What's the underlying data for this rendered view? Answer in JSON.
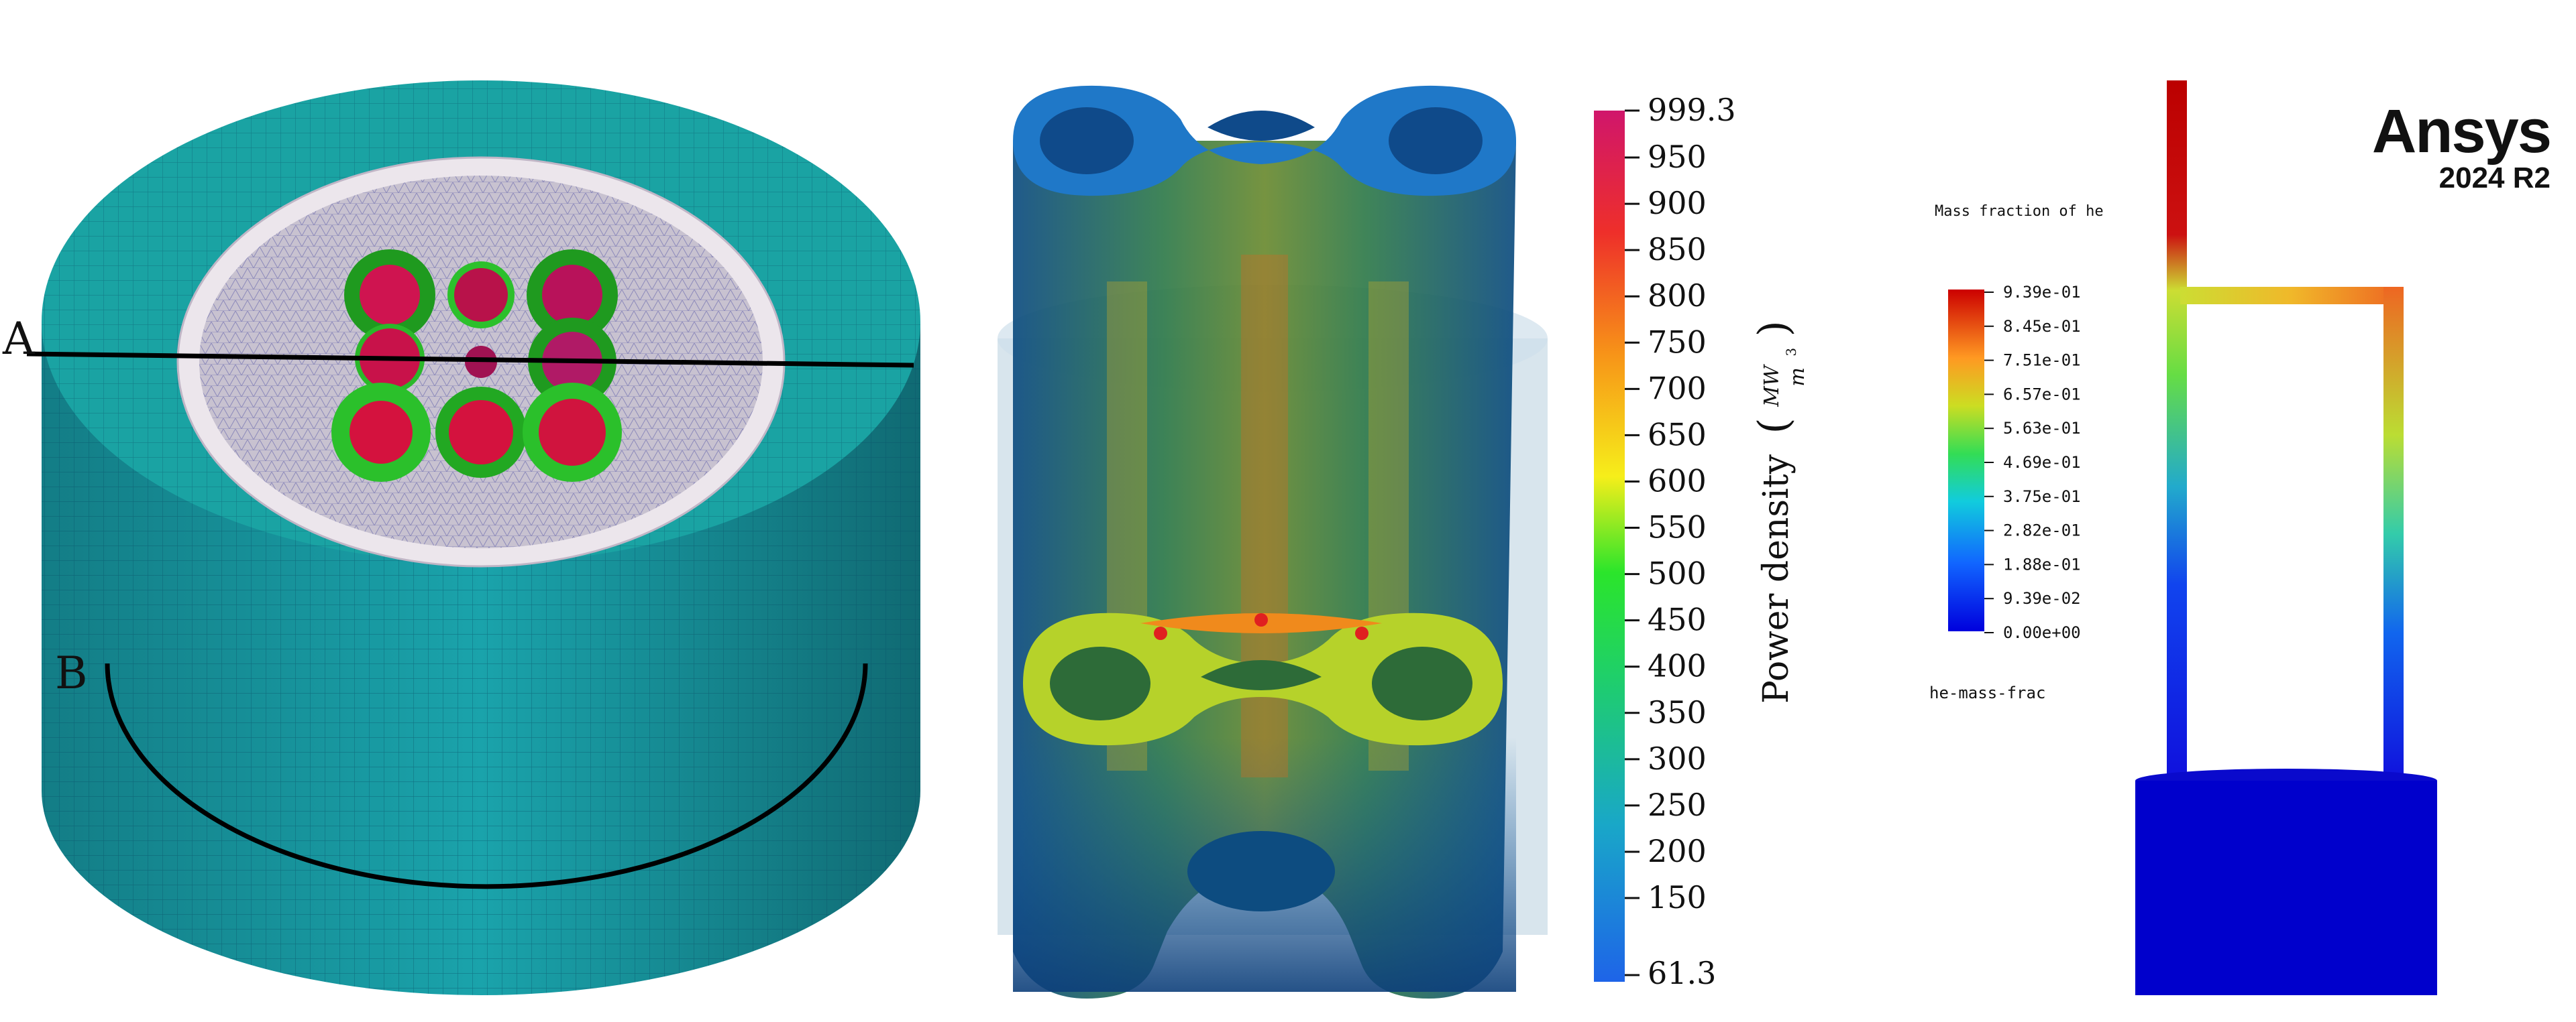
{
  "panel_left": {
    "label_a": "A",
    "label_b": "B"
  },
  "panel_middle": {
    "colorbar": {
      "title": "Power density",
      "unit_numerator": "MW",
      "unit_denominator": "m",
      "unit_exponent": "3",
      "max_label": "999.3",
      "min_label": "61.3",
      "ticks": [
        "950",
        "900",
        "850",
        "800",
        "750",
        "700",
        "650",
        "600",
        "550",
        "500",
        "450",
        "400",
        "350",
        "300",
        "250",
        "200",
        "150"
      ]
    }
  },
  "panel_right": {
    "legend_title": "Mass fraction of he",
    "legend_ticks": [
      "9.39e-01",
      "8.45e-01",
      "7.51e-01",
      "6.57e-01",
      "5.63e-01",
      "4.69e-01",
      "3.75e-01",
      "2.82e-01",
      "1.88e-01",
      "9.39e-02",
      "0.00e+00"
    ],
    "variable_name": "he-mass-frac"
  },
  "logo": {
    "brand": "Ansys",
    "version": "2024 R2"
  },
  "colors": {
    "mesh_teal": "#1aa3a3",
    "core_gray": "#c8c2d0",
    "rainbow_top": "#c80000",
    "rainbow_bottom": "#0000cc"
  }
}
